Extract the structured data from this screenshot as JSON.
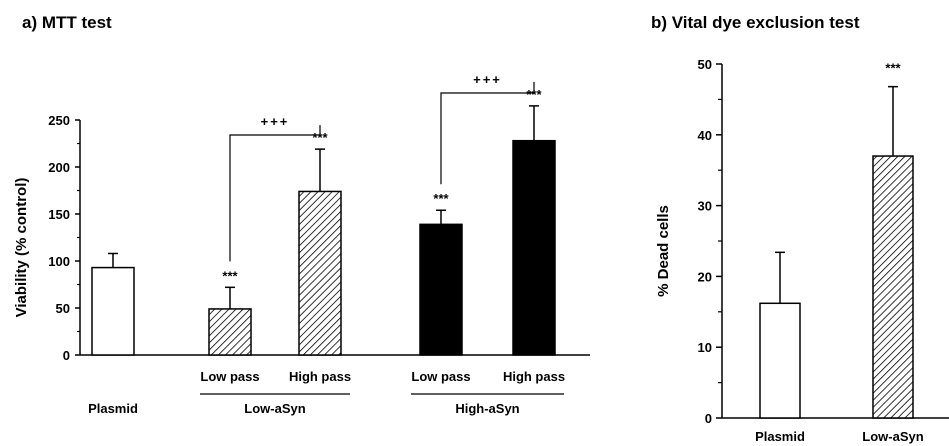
{
  "chart_data": [
    {
      "type": "bar",
      "title": "a) MTT test",
      "ylabel": "Viability (% control)",
      "ylim": [
        0,
        250
      ],
      "yticks": [
        0,
        50,
        100,
        150,
        200,
        250
      ],
      "bars": [
        {
          "label": "",
          "value": 93,
          "error": 15,
          "fill": "open",
          "significance": ""
        },
        {
          "label": "Low pass",
          "value": 49,
          "error": 23,
          "fill": "hatched",
          "significance": "***"
        },
        {
          "label": "High pass",
          "value": 174,
          "error": 45,
          "fill": "hatched",
          "significance": "***"
        },
        {
          "label": "Low pass",
          "value": 139,
          "error": 15,
          "fill": "solid",
          "significance": "***"
        },
        {
          "label": "High pass",
          "value": 228,
          "error": 37,
          "fill": "solid",
          "significance": "***"
        }
      ],
      "groups": [
        {
          "label": "Plasmid",
          "bars": [
            0
          ]
        },
        {
          "label": "Low-aSyn",
          "bars": [
            1,
            2
          ]
        },
        {
          "label": "High-aSyn",
          "bars": [
            3,
            4
          ]
        }
      ],
      "comparisons": [
        {
          "from": 1,
          "to": 2,
          "label": "+++"
        },
        {
          "from": 3,
          "to": 4,
          "label": "+++"
        }
      ],
      "grid": false
    },
    {
      "type": "bar",
      "title": "b) Vital dye exclusion test",
      "ylabel": "% Dead cells",
      "ylim": [
        0,
        50
      ],
      "yticks": [
        0,
        10,
        20,
        30,
        40,
        50
      ],
      "bars": [
        {
          "label": "Plasmid",
          "value": 16.2,
          "error": 7.2,
          "fill": "open",
          "significance": ""
        },
        {
          "label": "Low-aSyn",
          "value": 37,
          "error": 9.8,
          "fill": "hatched",
          "significance": "***"
        }
      ],
      "grid": false
    }
  ]
}
